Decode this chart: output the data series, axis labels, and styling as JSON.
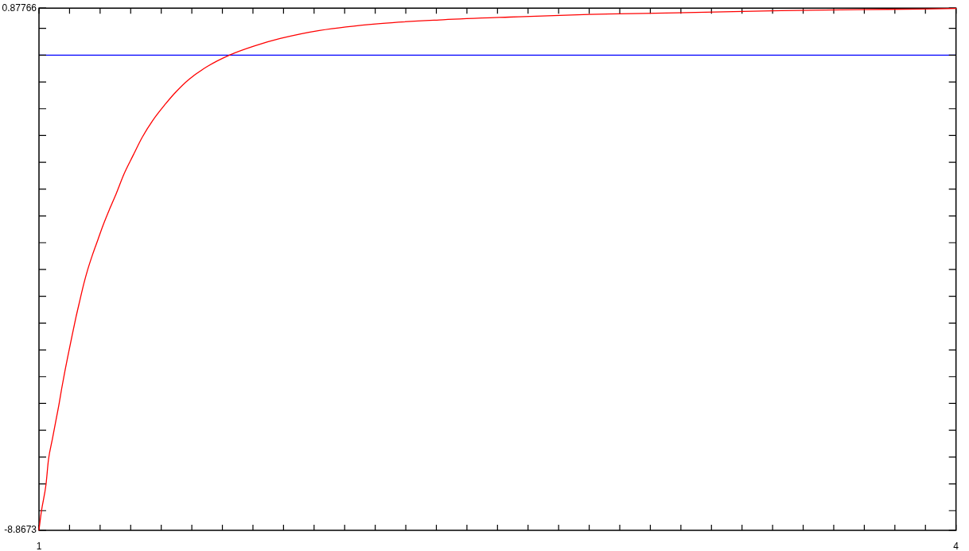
{
  "chart_data": {
    "type": "line",
    "x": [
      1.0,
      1.008,
      1.023,
      1.031,
      1.044,
      1.057,
      1.066,
      1.074,
      1.085,
      1.098,
      1.108,
      1.121,
      1.134,
      1.146,
      1.159,
      1.176,
      1.193,
      1.21,
      1.232,
      1.253,
      1.278,
      1.308,
      1.338,
      1.372,
      1.414,
      1.444,
      1.491,
      1.551,
      1.623,
      1.704,
      1.789,
      1.917,
      2.117,
      2.322,
      2.539,
      2.8,
      3.086,
      3.428,
      3.678,
      3.895,
      4.0
    ],
    "series": [
      {
        "color": "#ff0000",
        "values": [
          -8.86,
          -8.51,
          -8.01,
          -7.55,
          -7.16,
          -6.77,
          -6.5,
          -6.23,
          -5.89,
          -5.52,
          -5.24,
          -4.89,
          -4.57,
          -4.28,
          -4.01,
          -3.71,
          -3.44,
          -3.17,
          -2.86,
          -2.58,
          -2.22,
          -1.87,
          -1.53,
          -1.22,
          -0.91,
          -0.71,
          -0.45,
          -0.21,
          0.0,
          0.17,
          0.31,
          0.46,
          0.59,
          0.66,
          0.71,
          0.76,
          0.79,
          0.83,
          0.85,
          0.86,
          0.87
        ]
      }
    ],
    "xlim": [
      1,
      4
    ],
    "ylim": [
      -8.8673,
      0.87766
    ],
    "xticks": [
      1,
      {
        "value": 1.1,
        "label": null
      },
      {
        "value": 1.2,
        "label": null
      },
      {
        "value": 1.3,
        "label": null
      },
      {
        "value": 1.4,
        "label": null
      },
      {
        "value": 1.5,
        "label": null
      },
      {
        "value": 1.6,
        "label": null
      },
      {
        "value": 1.7,
        "label": null
      },
      {
        "value": 1.8,
        "label": null
      },
      {
        "value": 1.9,
        "label": null
      },
      {
        "value": 2.0,
        "label": null
      },
      {
        "value": 2.1,
        "label": null
      },
      {
        "value": 2.2,
        "label": null
      },
      {
        "value": 2.3,
        "label": null
      },
      {
        "value": 2.4,
        "label": null
      },
      {
        "value": 2.5,
        "label": null
      },
      {
        "value": 2.6,
        "label": null
      },
      {
        "value": 2.7,
        "label": null
      },
      {
        "value": 2.8,
        "label": null
      },
      {
        "value": 2.9,
        "label": null
      },
      {
        "value": 3.0,
        "label": null
      },
      {
        "value": 3.1,
        "label": null
      },
      {
        "value": 3.2,
        "label": null
      },
      {
        "value": 3.3,
        "label": null
      },
      {
        "value": 3.4,
        "label": null
      },
      {
        "value": 3.5,
        "label": null
      },
      {
        "value": 3.6,
        "label": null
      },
      {
        "value": 3.7,
        "label": null
      },
      {
        "value": 3.8,
        "label": null
      },
      {
        "value": 3.9,
        "label": null
      },
      4
    ],
    "yticks": [
      0.87766,
      {
        "value": 0.5,
        "label": null
      },
      {
        "value": 0,
        "label": null
      },
      {
        "value": -0.5,
        "label": null
      },
      {
        "value": -1,
        "label": null
      },
      {
        "value": -1.5,
        "label": null
      },
      {
        "value": -2,
        "label": null
      },
      {
        "value": -2.5,
        "label": null
      },
      {
        "value": -3,
        "label": null
      },
      {
        "value": -3.5,
        "label": null
      },
      {
        "value": -4,
        "label": null
      },
      {
        "value": -4.5,
        "label": null
      },
      {
        "value": -5,
        "label": null
      },
      {
        "value": -5.5,
        "label": null
      },
      {
        "value": -6,
        "label": null
      },
      {
        "value": -6.5,
        "label": null
      },
      {
        "value": -7,
        "label": null
      },
      {
        "value": -7.5,
        "label": null
      },
      {
        "value": -8,
        "label": null
      },
      {
        "value": -8.5,
        "label": null
      },
      -8.8673
    ],
    "ref_lines": [
      {
        "axis": "y",
        "value": 0,
        "color": "#0000ff"
      }
    ],
    "marker": "none"
  }
}
